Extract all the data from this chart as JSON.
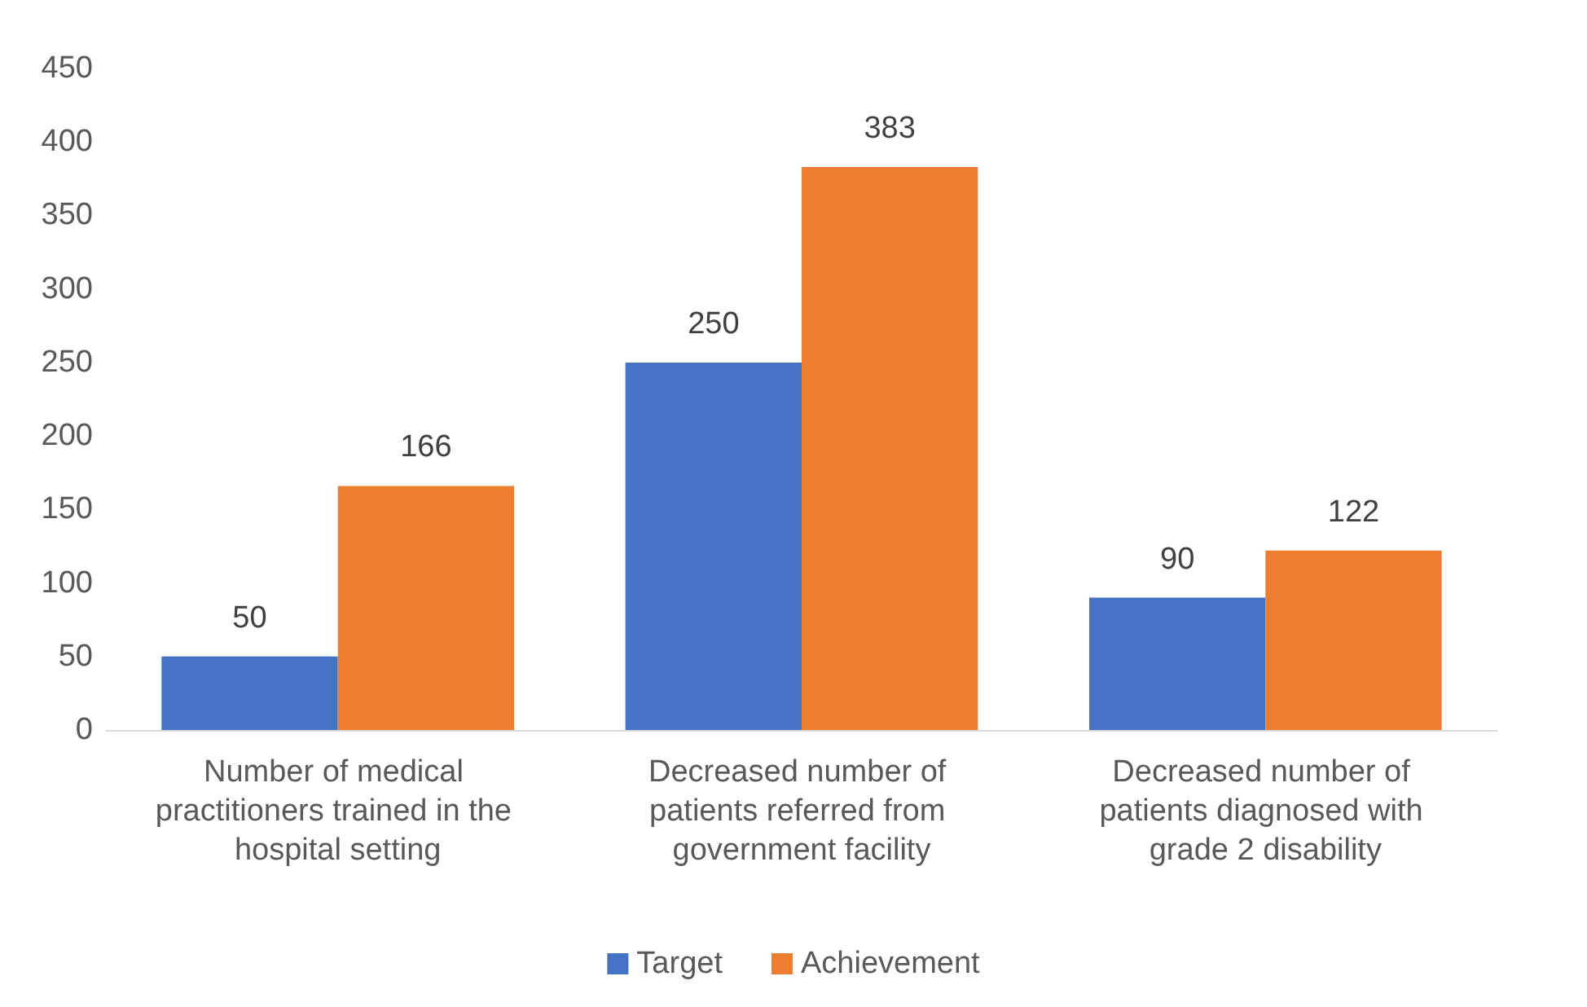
{
  "chart_data": {
    "type": "bar",
    "categories": [
      "Number of medical practitioners trained in the hospital setting",
      "Decreased number of patients referred from government facility",
      "Decreased number of patients diagnosed with grade 2 disability"
    ],
    "series": [
      {
        "name": "Target",
        "color": "#4472c4",
        "values": [
          50,
          250,
          90
        ]
      },
      {
        "name": "Achievement",
        "color": "#ed7d31",
        "values": [
          166,
          383,
          122
        ]
      }
    ],
    "ylim": [
      0,
      450
    ],
    "yticks": [
      0,
      50,
      100,
      150,
      200,
      250,
      300,
      350,
      400,
      450
    ],
    "grid": false,
    "legend": "bottom",
    "data_labels": true
  }
}
